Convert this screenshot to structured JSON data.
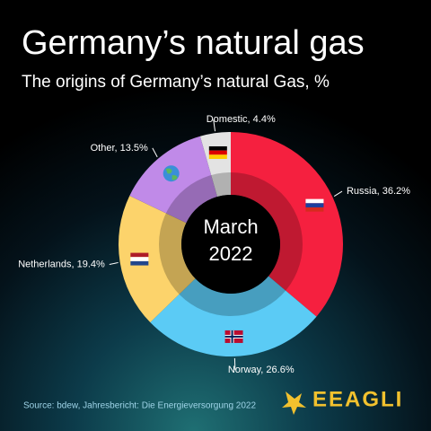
{
  "chart_data": {
    "type": "donut",
    "title": "Germany’s natural gas",
    "subtitle": "The origins of Germany’s natural Gas, %",
    "center_text": [
      "March",
      "2022"
    ],
    "values": [
      36.2,
      26.6,
      19.4,
      13.5,
      4.4
    ],
    "value_labels": [
      "Russia, 36.2%",
      "Norway, 26.6%",
      "Netherlands, 19.4%",
      "Other, 13.5%",
      "Domestic, 4.4%"
    ],
    "colors": [
      "#f5203f",
      "#5bcbf5",
      "#fcd36b",
      "#c08ae8",
      "#e3e3e3"
    ],
    "source": "Source: bdew, Jahresbericht: Die Energieversorgung 2022",
    "logo": "EEAGLI"
  }
}
